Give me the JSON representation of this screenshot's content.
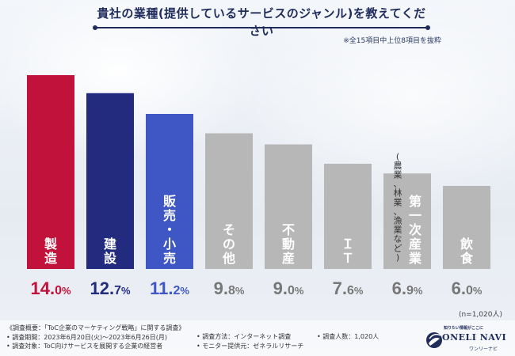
{
  "title": "貴社の業種(提供しているサービスのジャンル)を教えてください",
  "note": "※全15項目中上位8項目を抜粋",
  "n_note": "(n=1,020人)",
  "chart_data": {
    "type": "bar",
    "categories": [
      "製造",
      "建設",
      "販売・小売",
      "その他",
      "不動産",
      "IT",
      "第一次産業(農業、林業、漁業など)",
      "飲食"
    ],
    "category_labels": [
      {
        "main": "製造"
      },
      {
        "main": "建設"
      },
      {
        "main": "販売・小売"
      },
      {
        "main": "その他"
      },
      {
        "main": "不動産"
      },
      {
        "main": "ＩＴ"
      },
      {
        "main": "第一次産業",
        "sub": "(農業、林業、漁業など)"
      },
      {
        "main": "飲食"
      }
    ],
    "values": [
      14.0,
      12.7,
      11.2,
      9.8,
      9.0,
      7.6,
      6.9,
      6.0
    ],
    "value_labels": [
      {
        "num": "14.",
        "dec": "0",
        "unit": "%"
      },
      {
        "num": "12.",
        "dec": "7",
        "unit": "%"
      },
      {
        "num": "11.",
        "dec": "2",
        "unit": "%"
      },
      {
        "num": "9.",
        "dec": "8",
        "unit": "%"
      },
      {
        "num": "9.",
        "dec": "0",
        "unit": "%"
      },
      {
        "num": "7.",
        "dec": "6",
        "unit": "%"
      },
      {
        "num": "6.",
        "dec": "9",
        "unit": "%"
      },
      {
        "num": "6.",
        "dec": "0",
        "unit": "%"
      }
    ],
    "colors": [
      "#c0123a",
      "#232b7e",
      "#3e57c4",
      "#b7b7b7",
      "#b7b7b7",
      "#b7b7b7",
      "#b7b7b7",
      "#b7b7b7"
    ],
    "value_colors": [
      "#c0123a",
      "#232b7e",
      "#3e57c4",
      "#777777",
      "#777777",
      "#777777",
      "#777777",
      "#777777"
    ],
    "label_color": "#ffffff",
    "ylim": [
      0,
      14.0
    ]
  },
  "footer": {
    "col1": [
      "《調査概要：「ToC企業のマーケティング戦略」に関する調査》",
      "• 調査期間：2023年6月20日(火)～2023年6月26日(月)",
      "• 調査対象：ToC向けサービスを展開する企業の経営者"
    ],
    "col2": [
      "• 調査方法：インターネット調査",
      "• モニター提供元：ゼネラルリサーチ"
    ],
    "col3": [
      "• 調査人数：1,020人"
    ]
  },
  "logo": {
    "tagline": "知りたい情報がここに",
    "name": "ONELI NAVI",
    "sub": "ワンリーナビ"
  }
}
